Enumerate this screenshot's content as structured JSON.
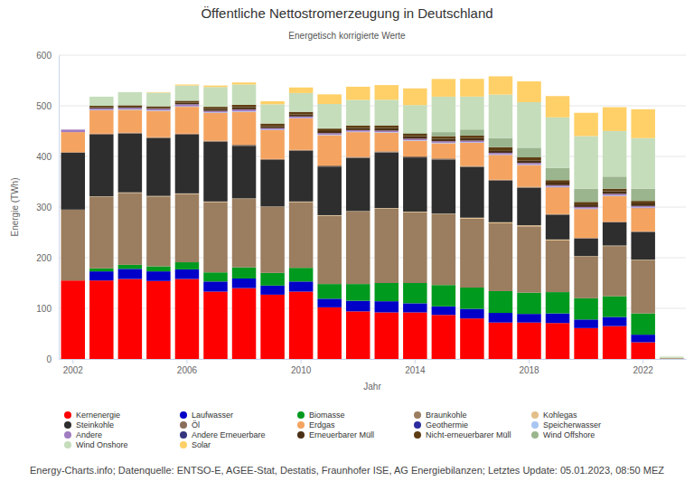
{
  "chart_data": {
    "type": "bar",
    "title": "Öffentliche Nettostromerzeugung in Deutschland",
    "subtitle": "Energetisch korrigierte Werte",
    "x_label": "Jahr",
    "y_label": "Energie (TWh)",
    "source": "Energy-Charts.info; Datenquelle: ENTSO-E, AGEE-Stat, Destatis, Fraunhofer ISE, AG Energiebilanzen; Letztes Update: 05.01.2023, 08:50 MEZ",
    "stacked": true,
    "grid": true,
    "legend": "bottom",
    "categories": [
      "2002",
      null,
      null,
      null,
      "2006",
      null,
      null,
      null,
      "2010",
      null,
      null,
      null,
      "2014",
      null,
      null,
      null,
      "2018",
      null,
      null,
      null,
      "2022",
      null
    ],
    "ylim": [
      0,
      600
    ],
    "yticks": [
      0,
      100,
      200,
      300,
      400,
      500,
      600
    ],
    "series": [
      {
        "name": "Kernenergie",
        "color": "#ff0000",
        "values": [
          155,
          155,
          158,
          154,
          158,
          133,
          140,
          127,
          133,
          102,
          94,
          92,
          92,
          87,
          80,
          72,
          72,
          71,
          61,
          65,
          33,
          0.3
        ]
      },
      {
        "name": "Laufwasser",
        "color": "#0000c8",
        "values": [
          0,
          18,
          20,
          19,
          19,
          20,
          19,
          18,
          20,
          17,
          21,
          22,
          18,
          17,
          19,
          19,
          17,
          19,
          17,
          18,
          15,
          0.1
        ]
      },
      {
        "name": "Biomasse",
        "color": "#009a1e",
        "values": [
          0,
          6,
          8,
          10,
          14,
          18,
          22,
          25,
          27,
          29,
          33,
          36,
          40,
          42,
          42,
          43,
          42,
          42,
          42,
          41,
          42,
          0.3
        ]
      },
      {
        "name": "Braunkohle",
        "color": "#9b7d5f",
        "values": [
          140,
          141,
          142,
          138,
          135,
          139,
          135,
          130,
          130,
          135,
          143,
          147,
          140,
          140,
          136,
          134,
          131,
          102,
          82,
          99,
          105,
          0.5
        ]
      },
      {
        "name": "Kohlegas",
        "color": "#e3c08a",
        "values": [
          0,
          1,
          1,
          1,
          1,
          1,
          1,
          1,
          1,
          1,
          1,
          1,
          1,
          1,
          2,
          2,
          2,
          2,
          1,
          1,
          1,
          0
        ]
      },
      {
        "name": "Steinkohle",
        "color": "#2e2e2e",
        "values": [
          113,
          122,
          116,
          114,
          116,
          118,
          104,
          92,
          100,
          96,
          105,
          110,
          107,
          107,
          100,
          82,
          74,
          49,
          35,
          46,
          55,
          0.2
        ]
      },
      {
        "name": "Öl",
        "color": "#8b6e5a",
        "values": [
          0,
          2,
          2,
          2,
          2,
          2,
          2,
          2,
          2,
          2,
          2,
          2,
          2,
          2,
          2,
          2,
          2,
          1,
          1,
          1,
          1,
          0
        ]
      },
      {
        "name": "Erdgas",
        "color": "#f4a460",
        "values": [
          40,
          46,
          45,
          52,
          53,
          55,
          65,
          57,
          62,
          60,
          49,
          37,
          31,
          30,
          46,
          49,
          43,
          53,
          57,
          51,
          46,
          0.4
        ]
      },
      {
        "name": "Geothermie",
        "color": "#2c2ca0",
        "values": [
          0,
          0,
          0,
          0,
          0,
          0,
          0,
          0,
          0,
          0,
          0,
          0,
          0,
          0,
          0.2,
          0.2,
          0.2,
          0.2,
          0.2,
          0.2,
          0.2,
          0
        ]
      },
      {
        "name": "Speicherwasser",
        "color": "#a9c5f2",
        "values": [
          0,
          1,
          1,
          1,
          1,
          1,
          1,
          1,
          1,
          1,
          1,
          1,
          1,
          1,
          1,
          1,
          1,
          1,
          1,
          1,
          1,
          0
        ]
      },
      {
        "name": "Andere",
        "color": "#a07cc0",
        "values": [
          5,
          3,
          3,
          3,
          4,
          3,
          4,
          3,
          3,
          3,
          3,
          3,
          3,
          3,
          3,
          3,
          3,
          3,
          3,
          3,
          3,
          0
        ]
      },
      {
        "name": "Andere Erneuerbare",
        "color": "#36367e",
        "values": [
          0,
          0,
          0,
          0,
          0,
          0,
          0,
          0,
          0,
          0,
          0,
          0,
          0,
          0,
          0,
          0,
          0,
          0,
          0,
          0,
          0,
          0
        ]
      },
      {
        "name": "Erneuerbarer Müll",
        "color": "#4a3015",
        "values": [
          0,
          2,
          2,
          2,
          3,
          4,
          4,
          4,
          4,
          4,
          4,
          5,
          5,
          5,
          5,
          5,
          5,
          5,
          5,
          5,
          5,
          0
        ]
      },
      {
        "name": "Nicht-erneuerbarer Müll",
        "color": "#5e3d12",
        "values": [
          0,
          3,
          3,
          3,
          4,
          4,
          5,
          5,
          5,
          5,
          5,
          5,
          5,
          5,
          5,
          6,
          6,
          5,
          5,
          5,
          5,
          0
        ]
      },
      {
        "name": "Wind Offshore",
        "color": "#9bb58e",
        "values": [
          0,
          0,
          0,
          0,
          0,
          0,
          0,
          0,
          0.2,
          0.6,
          0.7,
          0.9,
          1.4,
          8,
          12,
          18,
          19,
          24,
          26,
          24,
          24,
          0.3
        ]
      },
      {
        "name": "Wind Onshore",
        "color": "#c5ddbb",
        "values": [
          0,
          18,
          26,
          27,
          30,
          39,
          40,
          38,
          37,
          48,
          50,
          50,
          55,
          70,
          65,
          86,
          90,
          100,
          104,
          90,
          100,
          2.5
        ]
      },
      {
        "name": "Solar",
        "color": "#ffd067",
        "values": [
          0,
          0,
          0,
          1,
          2,
          3,
          4,
          6,
          11,
          19,
          26,
          29,
          33,
          35,
          35,
          36,
          41,
          42,
          46,
          47,
          57,
          0.1
        ]
      }
    ]
  }
}
